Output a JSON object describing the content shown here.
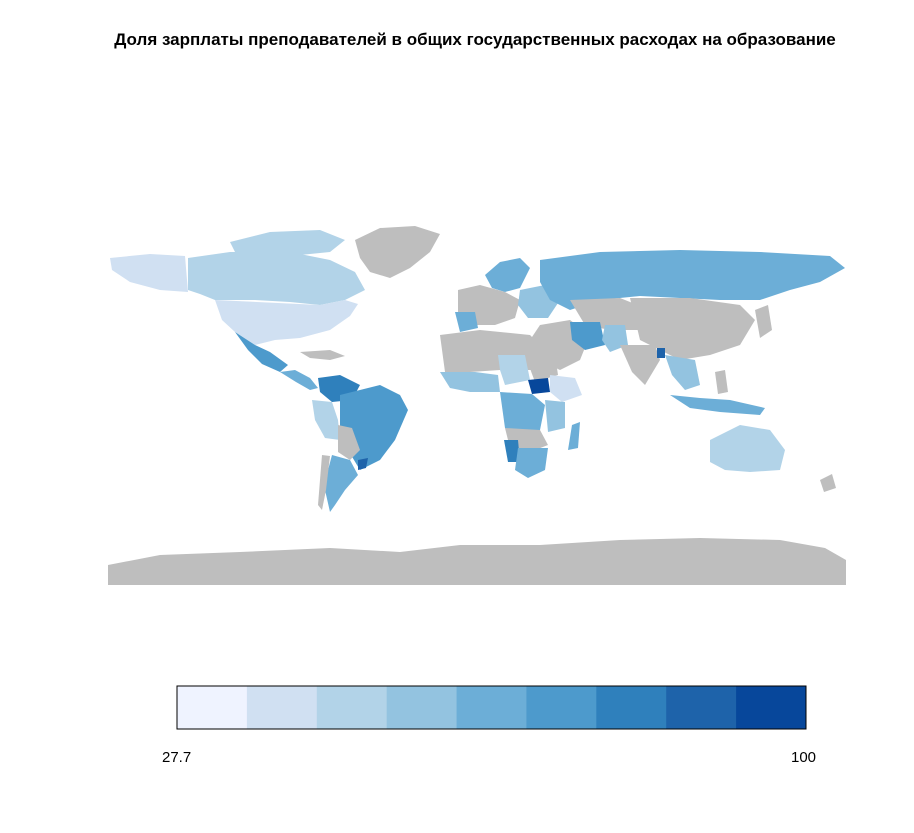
{
  "title": "Доля зарплаты преподавателей в общих государственных расходах на образование",
  "legend": {
    "min_label": "27.7",
    "max_label": "100",
    "colors": [
      "#eff3ff",
      "#d0e0f2",
      "#b2d3e8",
      "#93c3e0",
      "#6caed7",
      "#4d9acc",
      "#2f80bc",
      "#1e63aa",
      "#07479b"
    ]
  },
  "map": {
    "no_data_color": "#bebebe",
    "ocean_color": "#ffffff"
  }
}
